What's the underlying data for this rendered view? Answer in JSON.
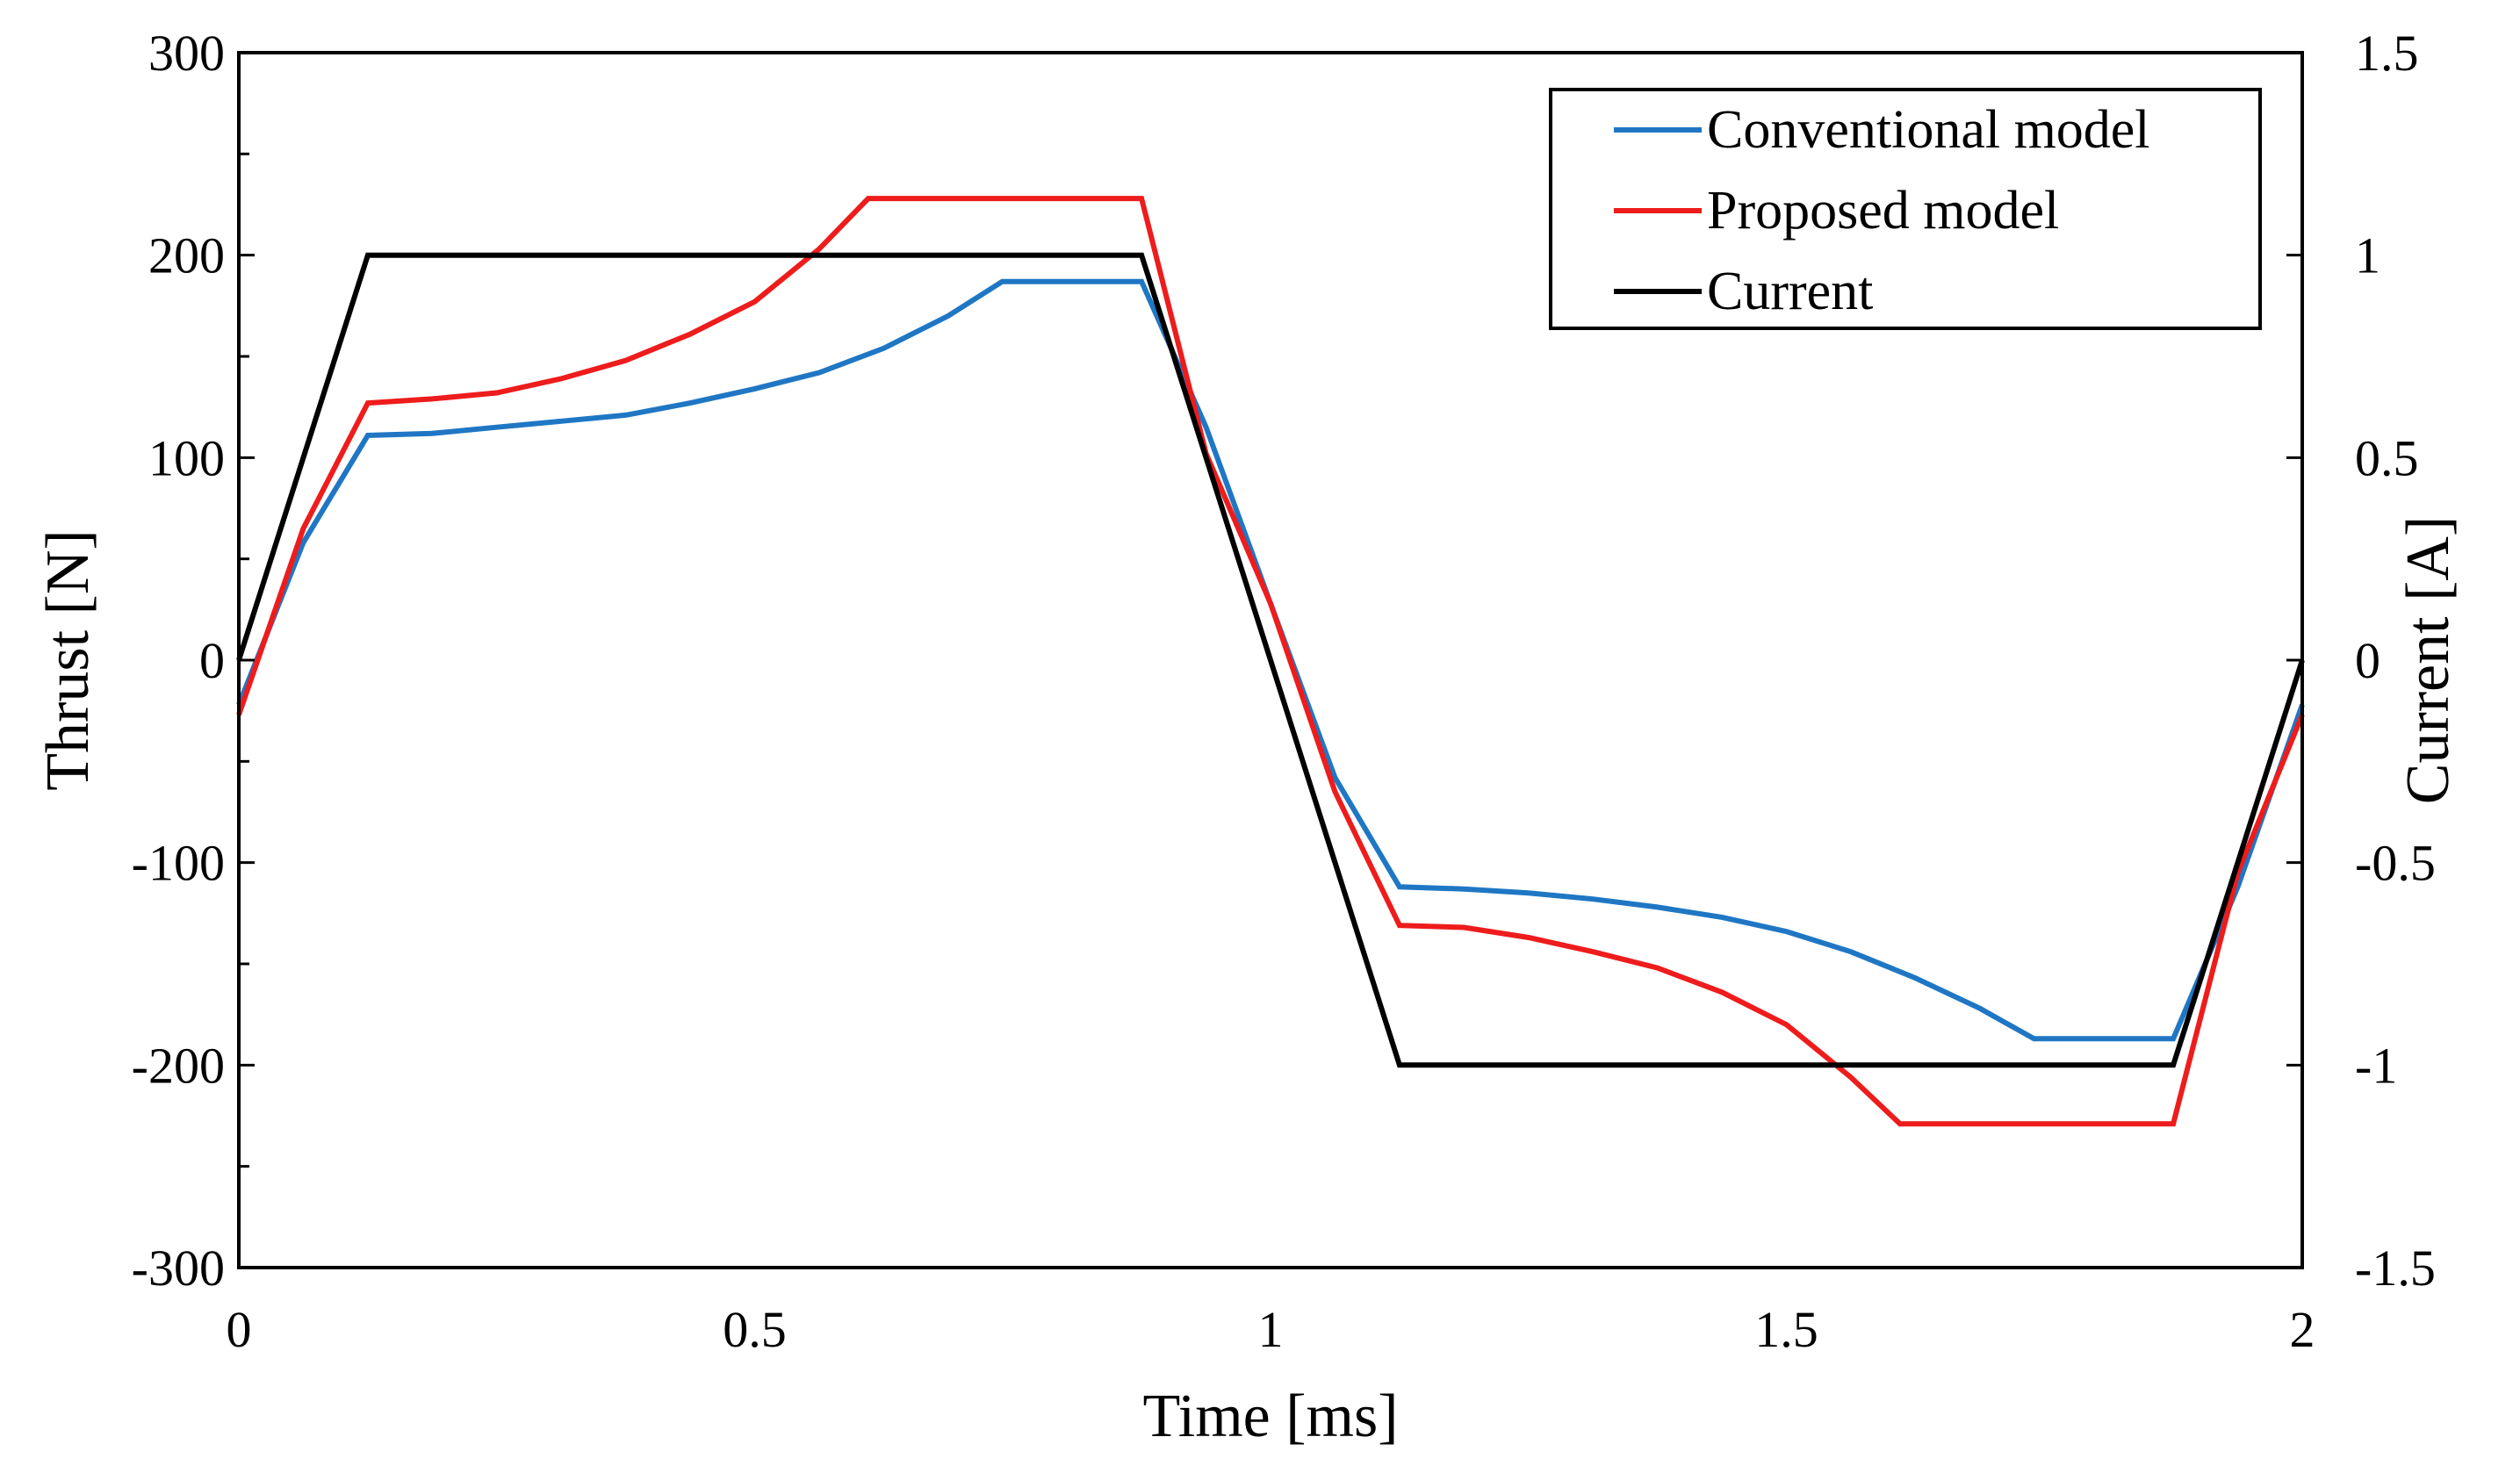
{
  "chart_data": {
    "type": "line",
    "title": "",
    "xlabel": "Time [ms]",
    "ylabel": "Thrust [N]",
    "y2label": "Current [A]",
    "xlim": [
      0,
      2
    ],
    "ylim": [
      -300,
      300
    ],
    "y2lim": [
      -1.5,
      1.5
    ],
    "x_ticks": [
      0,
      0.5,
      1,
      1.5,
      2
    ],
    "x_tick_labels": [
      "0",
      "0.5",
      "1",
      "1.5",
      "2"
    ],
    "y_ticks": [
      300,
      200,
      100,
      0,
      -100,
      -200,
      -300
    ],
    "y_tick_labels": [
      "300",
      "200",
      "100",
      "0",
      "-100",
      "-200",
      "-300"
    ],
    "y2_ticks": [
      1.5,
      1,
      0.5,
      0,
      -0.5,
      -1,
      -1.5
    ],
    "y2_tick_labels": [
      "1.5",
      "1",
      "0.5",
      "0",
      "-0.5",
      "-1",
      "-1.5"
    ],
    "y_minor_step": 50,
    "grid": false,
    "legend_position": "top-right",
    "series": [
      {
        "name": "Conventional model",
        "axis": "left",
        "color": "#1f77c4",
        "x": [
          0,
          0.0625,
          0.125,
          0.1875,
          0.25,
          0.3125,
          0.375,
          0.4375,
          0.5,
          0.5625,
          0.625,
          0.6875,
          0.74,
          0.875,
          0.9375,
          1.0,
          1.0625,
          1.125,
          1.1875,
          1.25,
          1.3125,
          1.375,
          1.4375,
          1.5,
          1.5625,
          1.625,
          1.6875,
          1.74,
          1.875,
          1.9375,
          2.0
        ],
        "y": [
          -22,
          58,
          111,
          112,
          115,
          118,
          121,
          127,
          134,
          142,
          154,
          170,
          187,
          187,
          115,
          28,
          -58,
          -112,
          -113,
          -115,
          -118,
          -122,
          -127,
          -134,
          -144,
          -157,
          -172,
          -187,
          -187,
          -112,
          -22
        ]
      },
      {
        "name": "Proposed model",
        "axis": "left",
        "color": "#ee1c1c",
        "x": [
          0,
          0.0625,
          0.125,
          0.1875,
          0.25,
          0.3125,
          0.375,
          0.4375,
          0.5,
          0.5625,
          0.61,
          0.875,
          0.9375,
          1.0,
          1.0625,
          1.125,
          1.1875,
          1.25,
          1.3125,
          1.375,
          1.4375,
          1.5,
          1.5625,
          1.61,
          1.875,
          1.9375,
          2.0
        ],
        "y": [
          -27,
          65,
          127,
          129,
          132,
          139,
          148,
          161,
          177,
          203,
          228,
          228,
          102,
          28,
          -65,
          -131,
          -132,
          -137,
          -144,
          -152,
          -164,
          -180,
          -206,
          -229,
          -229,
          -105,
          -27
        ]
      },
      {
        "name": "Current",
        "axis": "right",
        "color": "#000000",
        "x": [
          0,
          0.125,
          0.875,
          1.125,
          1.875,
          2.0
        ],
        "y": [
          0,
          1,
          1,
          -1,
          -1,
          0
        ]
      }
    ]
  }
}
